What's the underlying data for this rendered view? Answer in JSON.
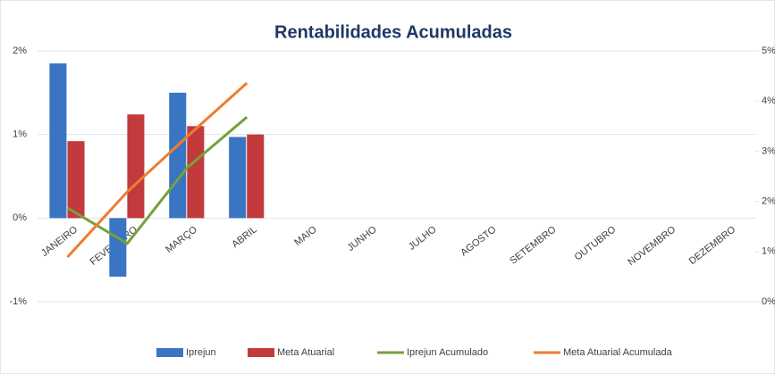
{
  "chart_data": {
    "type": "bar-line",
    "title": "Rentabilidades Acumuladas",
    "categories": [
      "JANEIRO",
      "FEVEREIRO",
      "MARÇO",
      "ABRIL",
      "MAIO",
      "JUNHO",
      "JULHO",
      "AGOSTO",
      "SETEMBRO",
      "OUTUBRO",
      "NOVEMBRO",
      "DEZEMBRO"
    ],
    "series": [
      {
        "name": "Iprejun",
        "type": "bar",
        "color": "#3a75c4",
        "values": [
          1.85,
          -0.7,
          1.5,
          0.97,
          null,
          null,
          null,
          null,
          null,
          null,
          null,
          null
        ]
      },
      {
        "name": "Meta Atuarial",
        "type": "bar",
        "color": "#c23a3c",
        "values": [
          0.92,
          1.24,
          1.1,
          1.0,
          null,
          null,
          null,
          null,
          null,
          null,
          null,
          null
        ]
      },
      {
        "name": "Iprejun Acumulado",
        "type": "line",
        "axis": "y2",
        "color": "#77a03a",
        "values": [
          1.87,
          1.16,
          2.67,
          3.68,
          null,
          null,
          null,
          null,
          null,
          null,
          null,
          null
        ]
      },
      {
        "name": "Meta Atuarial Acumulada",
        "type": "line",
        "axis": "y2",
        "color": "#ed7d31",
        "values": [
          0.89,
          2.19,
          3.29,
          4.36,
          null,
          null,
          null,
          null,
          null,
          null,
          null,
          null
        ]
      }
    ],
    "ylim": [
      -1,
      2
    ],
    "yticks": [
      {
        "value": -1,
        "label": "-1%"
      },
      {
        "value": 0,
        "label": "0%"
      },
      {
        "value": 1,
        "label": "1%"
      },
      {
        "value": 2,
        "label": "2%"
      }
    ],
    "y2lim": [
      0,
      5
    ],
    "y2ticks": [
      {
        "value": 0,
        "label": "0%"
      },
      {
        "value": 1,
        "label": "1%"
      },
      {
        "value": 2,
        "label": "2%"
      },
      {
        "value": 3,
        "label": "3%"
      },
      {
        "value": 4,
        "label": "4%"
      },
      {
        "value": 5,
        "label": "5%"
      }
    ],
    "grid": true,
    "legend": "bottom"
  }
}
